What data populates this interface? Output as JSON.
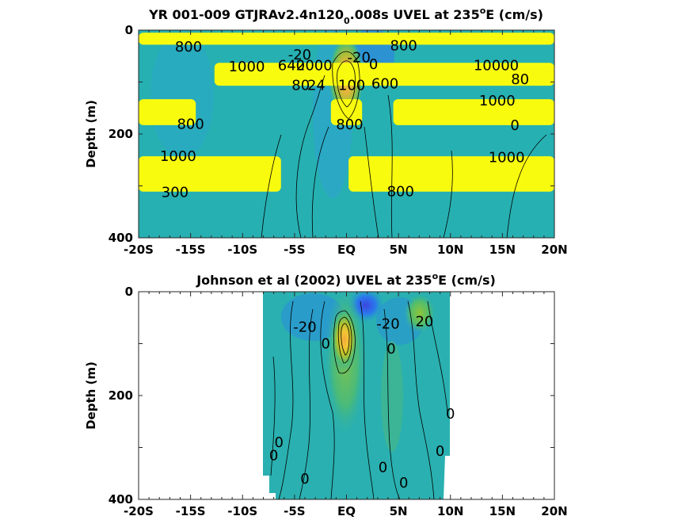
{
  "chart_data": [
    {
      "type": "heatmap",
      "title_parts": [
        "YR 001-009 GTJRAv2.4n120",
        "0",
        ".008s UVEL at 235",
        "o",
        "E (cm/s)"
      ],
      "ylabel": "Depth (m)",
      "xlim": [
        -20,
        20
      ],
      "ylim": [
        0,
        400
      ],
      "y_reversed": true,
      "x_tick_values": [
        -20,
        -15,
        -10,
        -5,
        0,
        5,
        10,
        15,
        20
      ],
      "x_tick_labels": [
        "-20S",
        "-15S",
        "-10S",
        "-5S",
        "EQ",
        "5N",
        "10N",
        "15N",
        "20N"
      ],
      "y_tick_values": [
        0,
        200,
        400
      ],
      "y_tick_labels": [
        "0",
        "200",
        "400"
      ],
      "yellow_bands": [
        {
          "depth": [
            5,
            28
          ],
          "x": [
            -20,
            20
          ]
        },
        {
          "depth": [
            63,
            107
          ],
          "x": [
            -12.7,
            20
          ]
        },
        {
          "depth": [
            133,
            183
          ],
          "x": [
            -20,
            -14.5
          ]
        },
        {
          "depth": [
            133,
            183
          ],
          "x": [
            -1.5,
            1.5
          ]
        },
        {
          "depth": [
            133,
            183
          ],
          "x": [
            4.5,
            20
          ]
        },
        {
          "depth": [
            243,
            311
          ],
          "x": [
            -20,
            -6.3
          ]
        },
        {
          "depth": [
            243,
            311
          ],
          "x": [
            0.2,
            20
          ]
        }
      ],
      "jet_core": {
        "x": 0,
        "depth": 90,
        "max_cms": 100
      },
      "contour_labels": [
        {
          "text": "800",
          "x": -15.2,
          "depth": 32
        },
        {
          "text": "800",
          "x": 5.5,
          "depth": 30
        },
        {
          "text": "1000",
          "x": -9.6,
          "depth": 70
        },
        {
          "text": "-20",
          "x": -4.5,
          "depth": 47
        },
        {
          "text": "640",
          "x": -5.3,
          "depth": 68
        },
        {
          "text": "2000",
          "x": -3.1,
          "depth": 68
        },
        {
          "text": "-20",
          "x": 1.2,
          "depth": 53
        },
        {
          "text": "0",
          "x": 2.6,
          "depth": 66
        },
        {
          "text": "10000",
          "x": 14.4,
          "depth": 68
        },
        {
          "text": "80",
          "x": 16.7,
          "depth": 95
        },
        {
          "text": "80",
          "x": -4.4,
          "depth": 106
        },
        {
          "text": "24",
          "x": -2.9,
          "depth": 106
        },
        {
          "text": "100",
          "x": 0.5,
          "depth": 106
        },
        {
          "text": "600",
          "x": 3.7,
          "depth": 103
        },
        {
          "text": "1000",
          "x": 14.5,
          "depth": 136
        },
        {
          "text": "800",
          "x": -15,
          "depth": 181
        },
        {
          "text": "800",
          "x": 0.3,
          "depth": 182
        },
        {
          "text": "0",
          "x": 16.2,
          "depth": 183
        },
        {
          "text": "1000",
          "x": -16.2,
          "depth": 243
        },
        {
          "text": "1000",
          "x": 15.4,
          "depth": 245
        },
        {
          "text": "300",
          "x": -16.5,
          "depth": 312
        },
        {
          "text": "800",
          "x": 5.2,
          "depth": 311
        }
      ]
    },
    {
      "type": "heatmap",
      "title_parts": [
        "Johnson et al (2002) UVEL at 235",
        "o",
        "E (cm/s)"
      ],
      "ylabel": "Depth (m)",
      "xlim": [
        -20,
        20
      ],
      "ylim": [
        0,
        400
      ],
      "y_reversed": true,
      "x_tick_values": [
        -20,
        -15,
        -10,
        -5,
        0,
        5,
        10,
        15,
        20
      ],
      "x_tick_labels": [
        "-20S",
        "-15S",
        "-10S",
        "-5S",
        "EQ",
        "5N",
        "10N",
        "15N",
        "20N"
      ],
      "y_tick_values": [
        0,
        200,
        400
      ],
      "y_tick_labels": [
        "0",
        "200",
        "400"
      ],
      "data_extent_x": [
        -8,
        10
      ],
      "jet_core": {
        "x": 0,
        "depth": 85,
        "max_cms": 100
      },
      "contour_labels": [
        {
          "text": "-20",
          "x": -4,
          "depth": 68
        },
        {
          "text": "-20",
          "x": 4,
          "depth": 62
        },
        {
          "text": "20",
          "x": 7.5,
          "depth": 57
        },
        {
          "text": "0",
          "x": -2,
          "depth": 100
        },
        {
          "text": "0",
          "x": 4.3,
          "depth": 110
        },
        {
          "text": "0",
          "x": 10,
          "depth": 235
        },
        {
          "text": "0",
          "x": -6.5,
          "depth": 290
        },
        {
          "text": "0",
          "x": -7,
          "depth": 315
        },
        {
          "text": "0",
          "x": 9,
          "depth": 307
        },
        {
          "text": "0",
          "x": -4,
          "depth": 360
        },
        {
          "text": "0",
          "x": 3.5,
          "depth": 338
        },
        {
          "text": "0",
          "x": 5.5,
          "depth": 368
        }
      ]
    }
  ]
}
